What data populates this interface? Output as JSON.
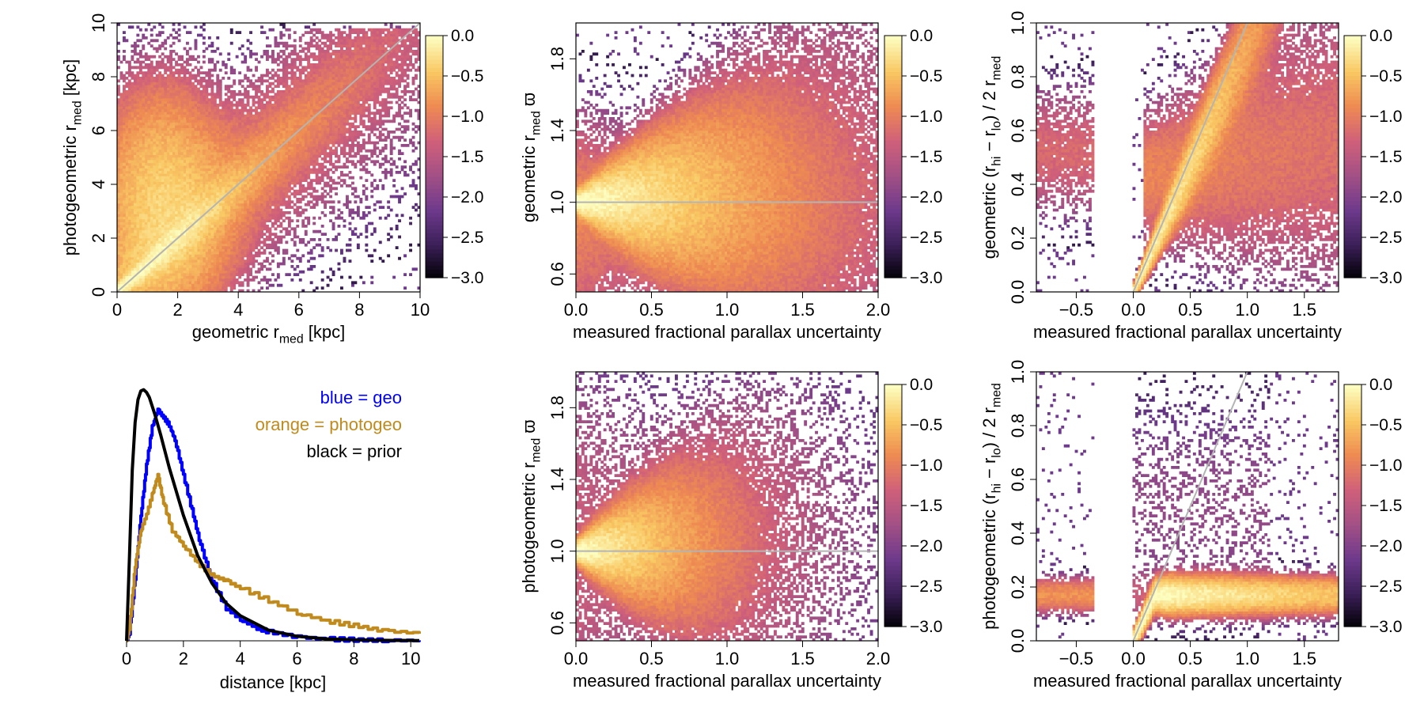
{
  "colors": {
    "scale": [
      "#000004",
      "#3b1f57",
      "#6e3a8c",
      "#a25085",
      "#d0607a",
      "#ee8a52",
      "#f9c863",
      "#fcfdbf"
    ],
    "blue": "#0000ff",
    "orange": "#c08a1c",
    "black": "#000000",
    "guide": "#b4b4b4"
  },
  "chart_data": [
    {
      "id": "p1",
      "type": "heatmap",
      "title": "",
      "xlabel": "geometric r_med [kpc]",
      "ylabel": "photogeometric r_med [kpc]",
      "xlim": [
        0,
        10
      ],
      "ylim": [
        0,
        10
      ],
      "xticks": [
        "0",
        "2",
        "4",
        "6",
        "8",
        "10"
      ],
      "yticks": [
        "0",
        "2",
        "4",
        "6",
        "8",
        "10"
      ],
      "ylabel_parts": {
        "a": "photogeometric r",
        "sub": "med",
        "b": " [kpc]"
      },
      "xlabel_parts": {
        "a": "geometric r",
        "sub": "med",
        "b": " [kpc]"
      },
      "guide": "y = x",
      "colorbar": {
        "min": -3.0,
        "max": 0.0,
        "ticks": [
          "0.0",
          "−0.5",
          "−1.0",
          "−1.5",
          "−2.0",
          "−2.5",
          "−3.0"
        ]
      }
    },
    {
      "id": "p2",
      "type": "heatmap",
      "title": "",
      "xlabel": "measured fractional parallax uncertainty",
      "ylabel": "geometric r_med ϖ",
      "xlim": [
        0,
        2.0
      ],
      "ylim": [
        0.5,
        2.0
      ],
      "xticks": [
        "0.0",
        "0.5",
        "1.0",
        "1.5",
        "2.0"
      ],
      "yticks": [
        "0.6",
        "1.0",
        "1.4",
        "1.8"
      ],
      "ylabel_parts": {
        "a": "geometric r",
        "sub": "med",
        "b": " ϖ"
      },
      "guide": "y = 1",
      "colorbar": {
        "min": -3.0,
        "max": 0.0,
        "ticks": [
          "0.0",
          "−0.5",
          "−1.0",
          "−1.5",
          "−2.0",
          "−2.5",
          "−3.0"
        ]
      }
    },
    {
      "id": "p3",
      "type": "heatmap",
      "title": "",
      "xlabel": "measured fractional parallax uncertainty",
      "ylabel": "geometric (r_hi − r_lo) / 2 r_med",
      "xlim": [
        -0.85,
        1.8
      ],
      "ylim": [
        0,
        1.0
      ],
      "xticks": [
        "−0.5",
        "0.0",
        "0.5",
        "1.0",
        "1.5"
      ],
      "yticks": [
        "0.0",
        "0.2",
        "0.4",
        "0.6",
        "0.8",
        "1.0"
      ],
      "ylabel_prefix": "geometric",
      "guide": "y = x",
      "colorbar": {
        "min": -3.0,
        "max": 0.0,
        "ticks": [
          "0.0",
          "−0.5",
          "−1.0",
          "−1.5",
          "−2.0",
          "−2.5",
          "−3.0"
        ]
      }
    },
    {
      "id": "p4",
      "type": "line",
      "title": "",
      "xlabel": "distance [kpc]",
      "ylabel": "",
      "xlim": [
        0,
        10.3
      ],
      "xticks": [
        "0",
        "2",
        "4",
        "6",
        "8",
        "10"
      ],
      "legend": [
        "blue = geo",
        "orange = photogeo",
        "black = prior"
      ],
      "legend_position": "top-right",
      "series": [
        {
          "name": "geo",
          "color": "blue",
          "x": [
            0,
            0.1,
            0.3,
            0.5,
            0.7,
            0.9,
            1.1,
            1.3,
            1.5,
            1.7,
            2.0,
            2.3,
            2.6,
            3.0,
            3.5,
            4.0,
            4.5,
            5.0,
            6.0,
            7.0,
            8.0,
            9.0,
            10.3
          ],
          "y": [
            0,
            0.03,
            0.25,
            0.5,
            0.7,
            0.85,
            0.92,
            0.89,
            0.86,
            0.8,
            0.66,
            0.52,
            0.38,
            0.24,
            0.13,
            0.085,
            0.055,
            0.035,
            0.015,
            0.007,
            0.004,
            0.002,
            0.001
          ]
        },
        {
          "name": "photogeo",
          "color": "orange",
          "x": [
            0,
            0.1,
            0.3,
            0.5,
            0.7,
            0.9,
            1.1,
            1.3,
            1.6,
            2.0,
            2.5,
            3.0,
            3.5,
            4.0,
            5.0,
            6.0,
            7.0,
            8.0,
            9.0,
            10.3
          ],
          "y": [
            0,
            0.05,
            0.3,
            0.44,
            0.5,
            0.58,
            0.66,
            0.55,
            0.44,
            0.38,
            0.31,
            0.26,
            0.24,
            0.21,
            0.16,
            0.11,
            0.08,
            0.06,
            0.04,
            0.03
          ]
        },
        {
          "name": "prior",
          "color": "black",
          "x": [
            0,
            0.1,
            0.2,
            0.3,
            0.4,
            0.5,
            0.6,
            0.7,
            0.8,
            1.0,
            1.2,
            1.5,
            2.0,
            2.5,
            3.0,
            3.5,
            4.0,
            5.0,
            6.0,
            7.0,
            8.0,
            9.0,
            10.3
          ],
          "y": [
            0,
            0.33,
            0.68,
            0.87,
            0.96,
            0.995,
            1.0,
            0.99,
            0.97,
            0.9,
            0.82,
            0.69,
            0.5,
            0.34,
            0.23,
            0.15,
            0.1,
            0.042,
            0.018,
            0.008,
            0.004,
            0.002,
            0.001
          ]
        }
      ]
    },
    {
      "id": "p5",
      "type": "heatmap",
      "title": "",
      "xlabel": "measured fractional parallax uncertainty",
      "ylabel": "photogeometric r_med ϖ",
      "xlim": [
        0,
        2.0
      ],
      "ylim": [
        0.5,
        2.0
      ],
      "xticks": [
        "0.0",
        "0.5",
        "1.0",
        "1.5",
        "2.0"
      ],
      "yticks": [
        "0.6",
        "1.0",
        "1.4",
        "1.8"
      ],
      "ylabel_parts": {
        "a": "photogeometric r",
        "sub": "med",
        "b": " ϖ"
      },
      "guide": "y = 1",
      "colorbar": {
        "min": -3.0,
        "max": 0.0,
        "ticks": [
          "0.0",
          "−0.5",
          "−1.0",
          "−1.5",
          "−2.0",
          "−2.5",
          "−3.0"
        ]
      }
    },
    {
      "id": "p6",
      "type": "heatmap",
      "title": "",
      "xlabel": "measured fractional parallax uncertainty",
      "ylabel": "photogeometric (r_hi − r_lo) / 2 r_med",
      "xlim": [
        -0.85,
        1.8
      ],
      "ylim": [
        0,
        1.0
      ],
      "xticks": [
        "−0.5",
        "0.0",
        "0.5",
        "1.0",
        "1.5"
      ],
      "yticks": [
        "0.0",
        "0.2",
        "0.4",
        "0.6",
        "0.8",
        "1.0"
      ],
      "ylabel_prefix": "photogeometric",
      "guide": "y = x",
      "colorbar": {
        "min": -3.0,
        "max": 0.0,
        "ticks": [
          "0.0",
          "−0.5",
          "−1.0",
          "−1.5",
          "−2.0",
          "−2.5",
          "−3.0"
        ]
      }
    }
  ]
}
